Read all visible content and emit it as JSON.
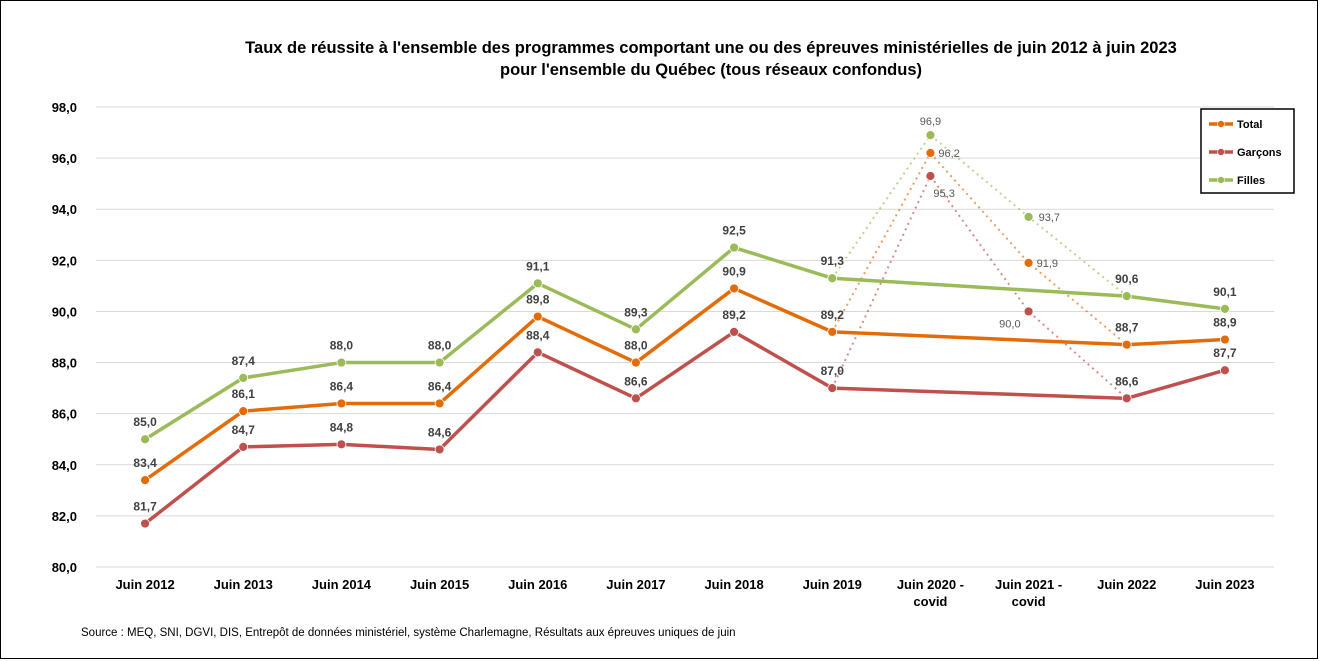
{
  "chart_data": {
    "type": "line",
    "title": "Taux de réussite à l'ensemble des programmes comportant une ou des épreuves ministérielles de juin 2012 à juin 2023",
    "subtitle": "pour l'ensemble du Québec (tous réseaux confondus)",
    "categories": [
      "Juin 2012",
      "Juin 2013",
      "Juin 2014",
      "Juin 2015",
      "Juin 2016",
      "Juin 2017",
      "Juin 2018",
      "Juin 2019",
      "Juin 2020 -\ncovid",
      "Juin 2021 -\ncovid",
      "Juin 2022",
      "Juin 2023"
    ],
    "ylim": [
      80,
      98
    ],
    "yticks": [
      "80,0",
      "82,0",
      "84,0",
      "86,0",
      "88,0",
      "90,0",
      "92,0",
      "94,0",
      "96,0",
      "98,0"
    ],
    "grid": true,
    "legend_position": "top-right",
    "series": [
      {
        "name": "Total",
        "color": "#e36c09",
        "values": [
          83.4,
          86.1,
          86.4,
          86.4,
          89.8,
          88.0,
          90.9,
          89.2,
          96.2,
          91.9,
          88.7,
          88.9
        ],
        "labels": [
          "83,4",
          "86,1",
          "86,4",
          "86,4",
          "89,8",
          "88,0",
          "90,9",
          "89,2",
          "96,2",
          "91,9",
          "88,7",
          "88,9"
        ]
      },
      {
        "name": "Garçons",
        "color": "#c0504d",
        "values": [
          81.7,
          84.7,
          84.8,
          84.6,
          88.4,
          86.6,
          89.2,
          87.0,
          95.3,
          90.0,
          86.6,
          87.7
        ],
        "labels": [
          "81,7",
          "84,7",
          "84,8",
          "84,6",
          "88,4",
          "86,6",
          "89,2",
          "87,0",
          "95,3",
          "90,0",
          "86,6",
          "87,7"
        ]
      },
      {
        "name": "Filles",
        "color": "#9bbb59",
        "values": [
          85.0,
          87.4,
          88.0,
          88.0,
          91.1,
          89.3,
          92.5,
          91.3,
          96.9,
          93.7,
          90.6,
          90.1
        ],
        "labels": [
          "85,0",
          "87,4",
          "88,0",
          "88,0",
          "91,1",
          "89,3",
          "92,5",
          "91,3",
          "96,9",
          "93,7",
          "90,6",
          "90,1"
        ]
      }
    ],
    "covid_categories": [
      "Juin 2020 -\ncovid",
      "Juin 2021 -\ncovid"
    ],
    "source": "Source : MEQ, SNI, DGVI, DIS, Entrepôt de données ministériel, système Charlemagne, Résultats aux épreuves uniques de juin"
  }
}
